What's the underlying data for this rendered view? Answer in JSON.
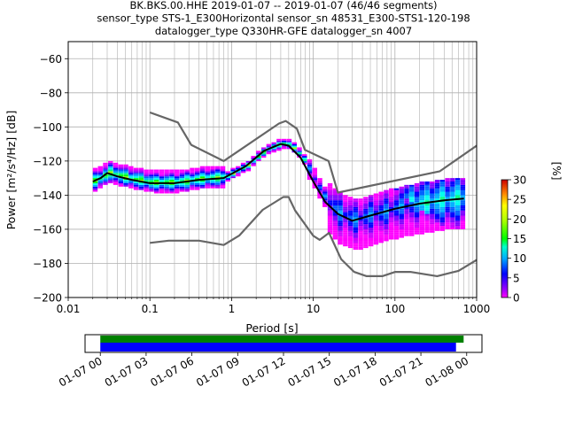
{
  "chart_data": [
    {
      "type": "heatmap",
      "title_lines": [
        "BK.BKS.00.HHE   2019-01-07 -- 2019-01-07  (46/46 segments)",
        "sensor_type STS-1_E300Horizontal sensor_sn 48531_E300-STS1-120-198",
        "datalogger_type Q330HR-GFE datalogger_sn 4007"
      ],
      "xlabel": "Period [s]",
      "ylabel": "Power [m²/s⁴/Hz] [dB]",
      "xscale": "log",
      "xlim": [
        0.01,
        1000
      ],
      "ylim": [
        -200,
        -50
      ],
      "x_ticks": [
        0.01,
        0.1,
        1,
        10,
        100,
        1000
      ],
      "x_tick_labels": [
        "0.01",
        "0.1",
        "1",
        "10",
        "100",
        "1000"
      ],
      "y_ticks": [
        -200,
        -180,
        -160,
        -140,
        -120,
        -100,
        -80,
        -60
      ],
      "y_tick_labels": [
        "−200",
        "−180",
        "−160",
        "−140",
        "−120",
        "−100",
        "−80",
        "−60"
      ],
      "grid": true,
      "colorbar": {
        "label": "[%]",
        "range": [
          0,
          30
        ],
        "ticks": [
          0,
          5,
          10,
          15,
          20,
          25,
          30
        ],
        "tick_labels": [
          "0",
          "5",
          "10",
          "15",
          "20",
          "25",
          "30"
        ]
      },
      "nhnm": {
        "x": [
          0.1,
          0.22,
          0.32,
          0.8,
          3.8,
          4.6,
          6.3,
          7.9,
          15.4,
          20,
          354.8,
          1000
        ],
        "y": [
          -91.5,
          -97.4,
          -110.5,
          -120,
          -98,
          -96.5,
          -101,
          -113.5,
          -120,
          -138.5,
          -126,
          -111
        ]
      },
      "nlnm": {
        "x": [
          0.1,
          0.17,
          0.4,
          0.8,
          1.24,
          2.4,
          4.3,
          5,
          6,
          10,
          12,
          15.6,
          21.9,
          31.6,
          45,
          70,
          101,
          154,
          328,
          600,
          1000
        ],
        "y": [
          -168,
          -166.7,
          -166.7,
          -169.2,
          -163.7,
          -148.6,
          -141.1,
          -141.1,
          -149,
          -163.8,
          -166.2,
          -162.1,
          -177.5,
          -185,
          -187.5,
          -187.5,
          -185,
          -185,
          -187.5,
          -184.4,
          -178
        ]
      },
      "mean_curve": {
        "x": [
          0.02,
          0.025,
          0.03,
          0.04,
          0.06,
          0.1,
          0.2,
          0.4,
          0.8,
          1.5,
          2.5,
          4,
          5,
          7,
          10,
          14,
          20,
          30,
          50,
          100,
          200,
          400,
          700
        ],
        "y": [
          -132,
          -130,
          -127,
          -129,
          -131,
          -133,
          -133,
          -131,
          -130,
          -123,
          -114,
          -110,
          -111,
          -118,
          -132,
          -144,
          -151,
          -155,
          -152,
          -148,
          -145,
          -143,
          -142
        ]
      }
    },
    {
      "type": "timeline",
      "x_tick_labels": [
        "01-07 00",
        "01-07 03",
        "01-07 06",
        "01-07 09",
        "01-07 12",
        "01-07 15",
        "01-07 18",
        "01-07 21",
        "01-08 00"
      ],
      "x_range_hours": [
        -1,
        25
      ],
      "bars": [
        {
          "color": "#008000",
          "start_hour": 0,
          "end_hour": 23.8
        },
        {
          "color": "#0000ff",
          "start_hour": 0,
          "end_hour": 23.3
        }
      ]
    }
  ]
}
